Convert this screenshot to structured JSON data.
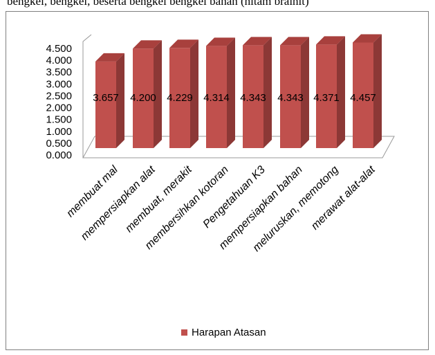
{
  "top_caption": "bengkel, bengkel, beserta bengkel bengkel bahan (hitam brainit)",
  "chart_data": {
    "type": "bar",
    "categories": [
      "membuat mal",
      "mempersiapkan alat",
      "membuat, merakit",
      "membersihkan kotoran",
      "Pengetahuan  K3",
      "mempersiapkan bahan",
      "meluruskan, memotong",
      "merawat alat-alat"
    ],
    "series": [
      {
        "name": "Harapan Atasan",
        "values": [
          3.657,
          4.2,
          4.229,
          4.314,
          4.343,
          4.343,
          4.371,
          4.457
        ],
        "color": "#c0504d"
      }
    ],
    "data_labels": [
      "3.657",
      "4.200",
      "4.229",
      "4.314",
      "4.343",
      "4.343",
      "4.371",
      "4.457"
    ],
    "y_ticks": [
      "0.000",
      "0.500",
      "1.000",
      "1.500",
      "2.000",
      "2.500",
      "3.000",
      "3.500",
      "4.000",
      "4.500"
    ],
    "ylim": [
      0,
      4.5
    ],
    "legend_position": "bottom",
    "style": "3d-column"
  }
}
